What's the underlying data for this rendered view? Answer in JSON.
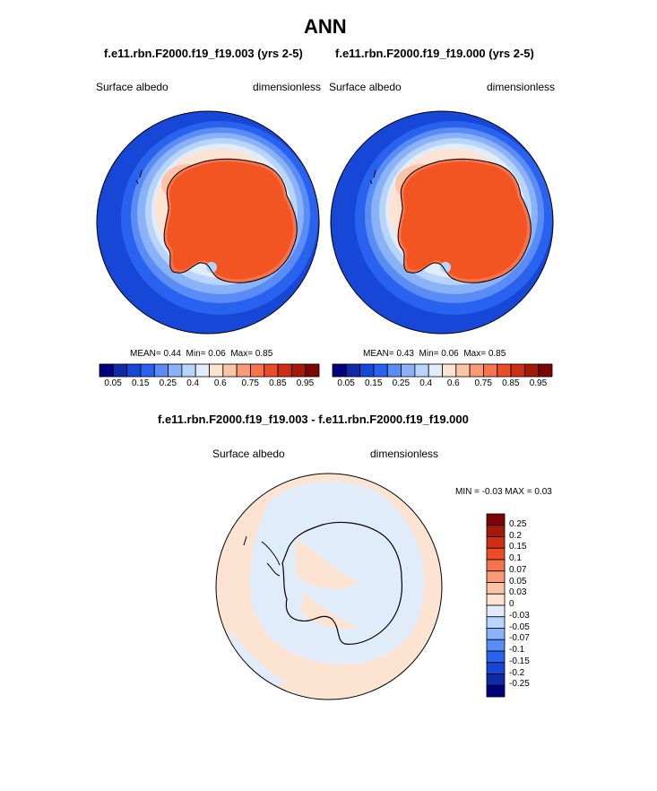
{
  "main_title": "ANN",
  "panels": [
    {
      "title": "f.e11.rbn.F2000.f19_f19.003 (yrs 2-5)",
      "variable": "Surface albedo",
      "units": "dimensionless",
      "stats": {
        "mean_label": "MEAN=",
        "mean": "0.44",
        "min_label": "Min=",
        "min": "0.06",
        "max_label": "Max=",
        "max": "0.85"
      }
    },
    {
      "title": "f.e11.rbn.F2000.f19_f19.000 (yrs 2-5)",
      "variable": "Surface albedo",
      "units": "dimensionless",
      "stats": {
        "mean_label": "MEAN=",
        "mean": "0.43",
        "min_label": "Min=",
        "min": "0.06",
        "max_label": "Max=",
        "max": "0.85"
      }
    }
  ],
  "colorbar": {
    "tick_labels": [
      "0.05",
      "0.15",
      "0.25",
      "0.4",
      "0.6",
      "0.75",
      "0.85",
      "0.95"
    ],
    "colors": [
      "#00007f",
      "#0f2aa8",
      "#1747d6",
      "#2a62f0",
      "#5a8cf5",
      "#8ab2f8",
      "#b9d4fa",
      "#e1ecfb",
      "#fde3d2",
      "#fbc4a6",
      "#f89a73",
      "#f5744d",
      "#ec4c28",
      "#cf2e14",
      "#a3190a",
      "#7a0502"
    ]
  },
  "difference": {
    "title": "f.e11.rbn.F2000.f19_f19.003 - f.e11.rbn.F2000.f19_f19.000",
    "variable": "Surface albedo",
    "units": "dimensionless",
    "minmax_text": "MIN = -0.03 MAX = 0.03",
    "colorbar_labels": [
      "0.25",
      "0.2",
      "0.15",
      "0.1",
      "0.07",
      "0.05",
      "0.03",
      "0",
      "-0.03",
      "-0.05",
      "-0.07",
      "-0.1",
      "-0.15",
      "-0.2",
      "-0.25"
    ],
    "colors": [
      "#7a0502",
      "#a3190a",
      "#cf2e14",
      "#ec4c28",
      "#f5744d",
      "#f89a73",
      "#fbc4a6",
      "#fde3d2",
      "#e1ecfb",
      "#b9d4fa",
      "#8ab2f8",
      "#5a8cf5",
      "#2a62f0",
      "#1747d6",
      "#0f2aa8",
      "#00007f"
    ]
  }
}
